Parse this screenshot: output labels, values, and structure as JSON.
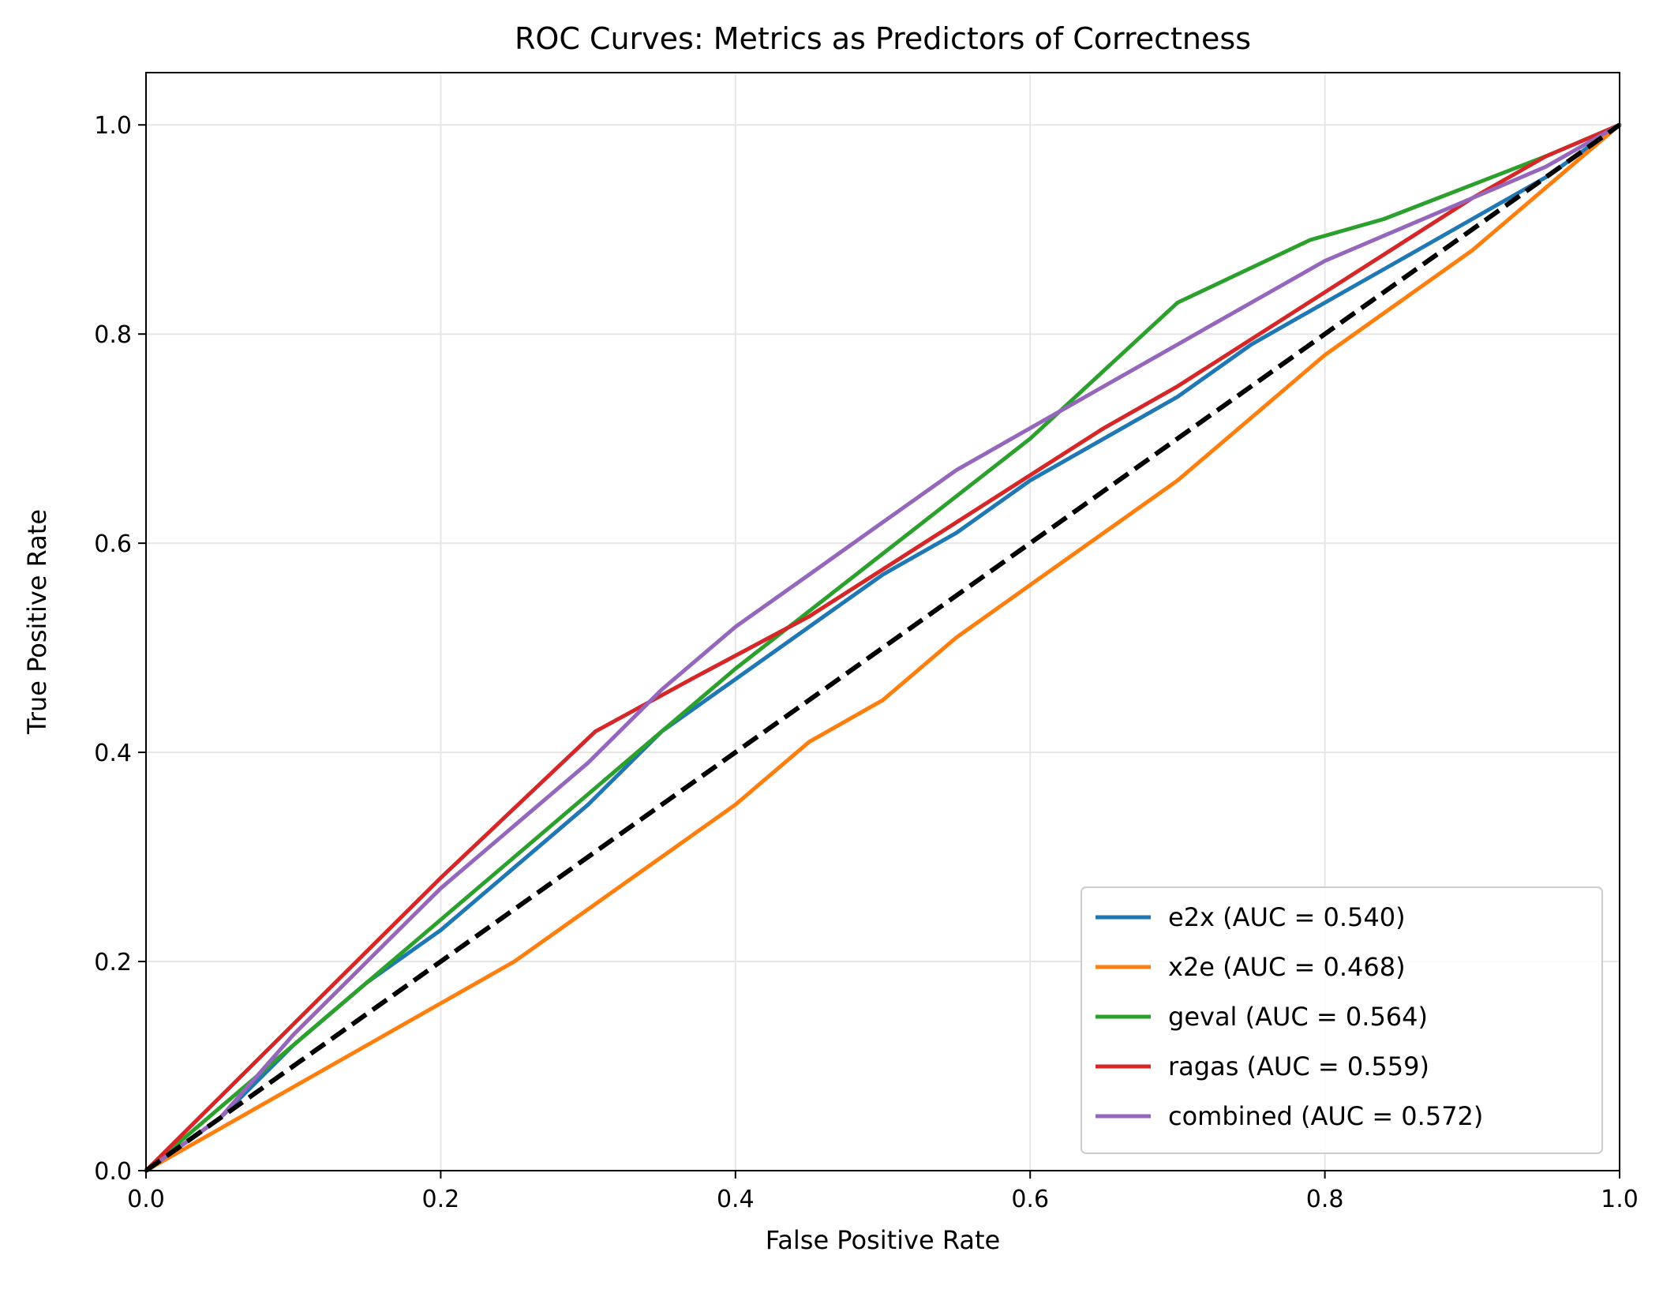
{
  "chart_data": {
    "type": "line",
    "title": "ROC Curves: Metrics as Predictors of Correctness",
    "xlabel": "False Positive Rate",
    "ylabel": "True Positive Rate",
    "xlim": [
      0.0,
      1.0
    ],
    "ylim": [
      0.0,
      1.05
    ],
    "xticks": [
      "0.0",
      "0.2",
      "0.4",
      "0.6",
      "0.8",
      "1.0"
    ],
    "yticks": [
      "0.0",
      "0.2",
      "0.4",
      "0.6",
      "0.8",
      "1.0"
    ],
    "grid": true,
    "legend_position": "lower-right",
    "series": [
      {
        "name": "e2x (AUC = 0.540)",
        "color": "#1f77b4",
        "x": [
          0.0,
          0.05,
          0.1,
          0.15,
          0.2,
          0.25,
          0.3,
          0.35,
          0.4,
          0.45,
          0.5,
          0.55,
          0.6,
          0.65,
          0.7,
          0.75,
          0.8,
          0.85,
          0.9,
          0.95,
          1.0
        ],
        "y": [
          0.0,
          0.05,
          0.12,
          0.18,
          0.23,
          0.29,
          0.35,
          0.42,
          0.47,
          0.52,
          0.57,
          0.61,
          0.66,
          0.7,
          0.74,
          0.79,
          0.83,
          0.87,
          0.91,
          0.95,
          1.0
        ]
      },
      {
        "name": "x2e (AUC = 0.468)",
        "color": "#ff7f0e",
        "x": [
          0.0,
          0.05,
          0.1,
          0.15,
          0.2,
          0.25,
          0.3,
          0.35,
          0.4,
          0.45,
          0.5,
          0.55,
          0.6,
          0.65,
          0.7,
          0.75,
          0.8,
          0.85,
          0.9,
          0.95,
          1.0
        ],
        "y": [
          0.0,
          0.04,
          0.08,
          0.12,
          0.16,
          0.2,
          0.25,
          0.3,
          0.35,
          0.41,
          0.45,
          0.51,
          0.56,
          0.61,
          0.66,
          0.72,
          0.78,
          0.83,
          0.88,
          0.94,
          1.0
        ]
      },
      {
        "name": "geval (AUC = 0.564)",
        "color": "#2ca02c",
        "x": [
          0.0,
          0.1,
          0.2,
          0.3,
          0.4,
          0.5,
          0.6,
          0.7,
          0.79,
          0.84,
          0.95,
          1.0
        ],
        "y": [
          0.0,
          0.12,
          0.24,
          0.36,
          0.48,
          0.59,
          0.7,
          0.83,
          0.89,
          0.91,
          0.97,
          1.0
        ]
      },
      {
        "name": "ragas (AUC = 0.559)",
        "color": "#d62728",
        "x": [
          0.0,
          0.1,
          0.2,
          0.305,
          0.37,
          0.45,
          0.55,
          0.65,
          0.7,
          0.8,
          0.9,
          0.95,
          1.0
        ],
        "y": [
          0.0,
          0.14,
          0.28,
          0.42,
          0.47,
          0.53,
          0.62,
          0.71,
          0.75,
          0.84,
          0.93,
          0.97,
          1.0
        ]
      },
      {
        "name": "combined (AUC = 0.572)",
        "color": "#9467bd",
        "x": [
          0.0,
          0.05,
          0.1,
          0.15,
          0.2,
          0.25,
          0.3,
          0.35,
          0.4,
          0.45,
          0.5,
          0.55,
          0.6,
          0.65,
          0.7,
          0.75,
          0.8,
          0.85,
          0.9,
          0.95,
          1.0
        ],
        "y": [
          0.0,
          0.05,
          0.13,
          0.2,
          0.27,
          0.33,
          0.39,
          0.46,
          0.52,
          0.57,
          0.62,
          0.67,
          0.71,
          0.75,
          0.79,
          0.83,
          0.87,
          0.9,
          0.93,
          0.96,
          1.0
        ]
      },
      {
        "name": "",
        "color": "#000000",
        "dashed": true,
        "x": [
          0.0,
          1.0
        ],
        "y": [
          0.0,
          1.0
        ]
      }
    ]
  }
}
